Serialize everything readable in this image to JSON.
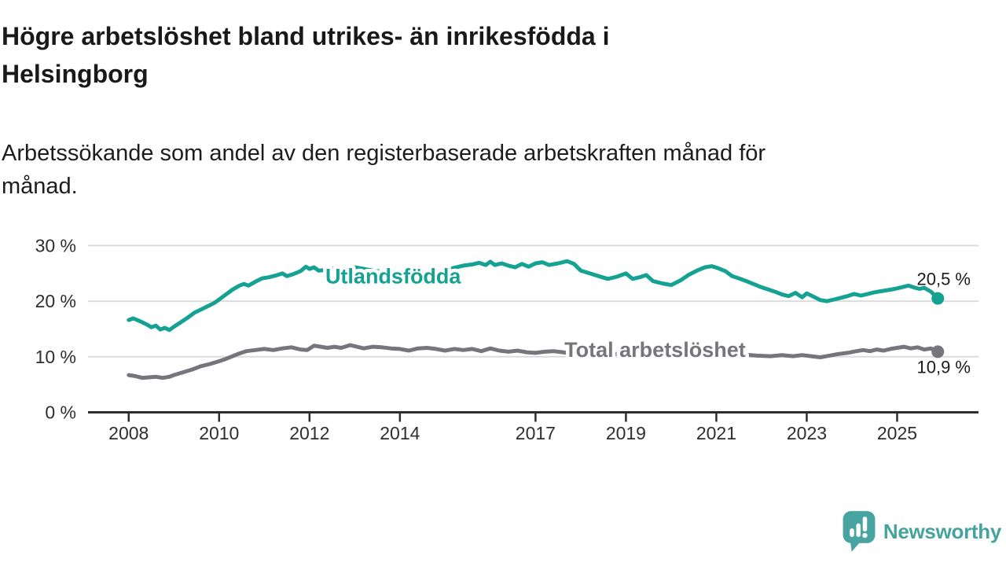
{
  "header": {
    "title_lines": [
      "Högre arbetslöshet bland utrikes- än inrikesfödda i",
      "Helsingborg"
    ],
    "subtitle_lines": [
      "Arbetssökande som andel av den registerbaserade arbetskraften månad för",
      "månad."
    ]
  },
  "chart_data": {
    "type": "line",
    "title": "Högre arbetslöshet bland utrikes- än inrikesfödda i Helsingborg",
    "subtitle": "Arbetssökande som andel av den registerbaserade arbetskraften månad för månad.",
    "x_unit": "year",
    "x_range": [
      2007.1,
      2026.8
    ],
    "y_range": [
      0,
      30
    ],
    "grid": "horizontal-light",
    "legend": "inline-labels",
    "y_ticks": [
      {
        "value": 0,
        "label": "0 %"
      },
      {
        "value": 10,
        "label": "10 %"
      },
      {
        "value": 20,
        "label": "20 %"
      },
      {
        "value": 30,
        "label": "30 %"
      }
    ],
    "x_ticks": [
      {
        "value": 2008,
        "label": "2008"
      },
      {
        "value": 2010,
        "label": "2010"
      },
      {
        "value": 2012,
        "label": "2012"
      },
      {
        "value": 2014,
        "label": "2014"
      },
      {
        "value": 2017,
        "label": "2017"
      },
      {
        "value": 2019,
        "label": "2019"
      },
      {
        "value": 2021,
        "label": "2021"
      },
      {
        "value": 2023,
        "label": "2023"
      },
      {
        "value": 2025,
        "label": "2025"
      }
    ],
    "series": [
      {
        "id": "utlandsfodda",
        "name": "Utlandsfödda",
        "color": "#15a292",
        "end_label": "20,5 %",
        "end_value": 20.5,
        "end_label_position": "above",
        "label": {
          "text": "Utlandsfödda",
          "x": 2012.35,
          "y": 23.2
        },
        "points": [
          [
            2008.0,
            16.6
          ],
          [
            2008.1,
            16.9
          ],
          [
            2008.25,
            16.4
          ],
          [
            2008.4,
            15.8
          ],
          [
            2008.5,
            15.3
          ],
          [
            2008.6,
            15.6
          ],
          [
            2008.7,
            14.9
          ],
          [
            2008.8,
            15.2
          ],
          [
            2008.9,
            14.8
          ],
          [
            2009.0,
            15.4
          ],
          [
            2009.15,
            16.2
          ],
          [
            2009.3,
            17.0
          ],
          [
            2009.45,
            17.9
          ],
          [
            2009.6,
            18.5
          ],
          [
            2009.75,
            19.1
          ],
          [
            2009.9,
            19.7
          ],
          [
            2010.0,
            20.3
          ],
          [
            2010.15,
            21.2
          ],
          [
            2010.3,
            22.1
          ],
          [
            2010.45,
            22.8
          ],
          [
            2010.55,
            23.1
          ],
          [
            2010.65,
            22.8
          ],
          [
            2010.8,
            23.5
          ],
          [
            2010.95,
            24.1
          ],
          [
            2011.1,
            24.3
          ],
          [
            2011.25,
            24.6
          ],
          [
            2011.4,
            25.0
          ],
          [
            2011.5,
            24.5
          ],
          [
            2011.65,
            24.9
          ],
          [
            2011.8,
            25.4
          ],
          [
            2011.92,
            26.2
          ],
          [
            2012.0,
            25.8
          ],
          [
            2012.1,
            26.1
          ],
          [
            2012.2,
            25.5
          ],
          [
            2012.35,
            25.6
          ],
          [
            2012.5,
            25.9
          ],
          [
            2012.65,
            25.6
          ],
          [
            2012.8,
            25.8
          ],
          [
            2013.0,
            26.1
          ],
          [
            2013.2,
            25.8
          ],
          [
            2013.4,
            25.5
          ],
          [
            2013.6,
            25.3
          ],
          [
            2013.8,
            25.1
          ],
          [
            2014.0,
            24.9
          ],
          [
            2014.2,
            24.6
          ],
          [
            2014.4,
            24.3
          ],
          [
            2014.6,
            24.6
          ],
          [
            2014.8,
            25.0
          ],
          [
            2015.0,
            25.5
          ],
          [
            2015.2,
            26.0
          ],
          [
            2015.4,
            26.4
          ],
          [
            2015.6,
            26.6
          ],
          [
            2015.75,
            26.9
          ],
          [
            2015.9,
            26.5
          ],
          [
            2016.0,
            27.1
          ],
          [
            2016.1,
            26.5
          ],
          [
            2016.25,
            26.8
          ],
          [
            2016.4,
            26.4
          ],
          [
            2016.55,
            26.1
          ],
          [
            2016.7,
            26.7
          ],
          [
            2016.85,
            26.2
          ],
          [
            2017.0,
            26.8
          ],
          [
            2017.15,
            27.0
          ],
          [
            2017.3,
            26.5
          ],
          [
            2017.5,
            26.8
          ],
          [
            2017.7,
            27.2
          ],
          [
            2017.85,
            26.7
          ],
          [
            2018.0,
            25.5
          ],
          [
            2018.2,
            25.0
          ],
          [
            2018.4,
            24.5
          ],
          [
            2018.6,
            24.0
          ],
          [
            2018.8,
            24.4
          ],
          [
            2019.0,
            25.0
          ],
          [
            2019.15,
            24.0
          ],
          [
            2019.3,
            24.3
          ],
          [
            2019.45,
            24.7
          ],
          [
            2019.6,
            23.6
          ],
          [
            2019.8,
            23.2
          ],
          [
            2020.0,
            22.9
          ],
          [
            2020.2,
            23.7
          ],
          [
            2020.4,
            24.8
          ],
          [
            2020.6,
            25.6
          ],
          [
            2020.75,
            26.1
          ],
          [
            2020.9,
            26.3
          ],
          [
            2021.05,
            25.9
          ],
          [
            2021.2,
            25.4
          ],
          [
            2021.35,
            24.5
          ],
          [
            2021.5,
            24.1
          ],
          [
            2021.7,
            23.5
          ],
          [
            2021.85,
            23.0
          ],
          [
            2022.0,
            22.5
          ],
          [
            2022.15,
            22.1
          ],
          [
            2022.3,
            21.7
          ],
          [
            2022.45,
            21.2
          ],
          [
            2022.6,
            20.9
          ],
          [
            2022.75,
            21.5
          ],
          [
            2022.9,
            20.7
          ],
          [
            2023.0,
            21.4
          ],
          [
            2023.15,
            20.8
          ],
          [
            2023.3,
            20.2
          ],
          [
            2023.45,
            20.0
          ],
          [
            2023.6,
            20.3
          ],
          [
            2023.75,
            20.6
          ],
          [
            2023.9,
            20.9
          ],
          [
            2024.05,
            21.3
          ],
          [
            2024.2,
            21.0
          ],
          [
            2024.35,
            21.3
          ],
          [
            2024.5,
            21.6
          ],
          [
            2024.65,
            21.8
          ],
          [
            2024.8,
            22.0
          ],
          [
            2024.95,
            22.2
          ],
          [
            2025.1,
            22.5
          ],
          [
            2025.25,
            22.8
          ],
          [
            2025.4,
            22.4
          ],
          [
            2025.5,
            22.2
          ],
          [
            2025.6,
            22.4
          ],
          [
            2025.75,
            21.7
          ],
          [
            2025.9,
            20.5
          ]
        ]
      },
      {
        "id": "total-arbetsloshet",
        "name": "Total arbetslöshet",
        "color": "#76757c",
        "end_label": "10,9 %",
        "end_value": 10.9,
        "end_label_position": "below",
        "label": {
          "text": "Total arbetslöshet",
          "x": 2017.64,
          "y": 10.0
        },
        "points": [
          [
            2008.0,
            6.7
          ],
          [
            2008.15,
            6.5
          ],
          [
            2008.3,
            6.2
          ],
          [
            2008.45,
            6.3
          ],
          [
            2008.6,
            6.4
          ],
          [
            2008.75,
            6.2
          ],
          [
            2008.9,
            6.4
          ],
          [
            2009.0,
            6.7
          ],
          [
            2009.2,
            7.2
          ],
          [
            2009.4,
            7.7
          ],
          [
            2009.6,
            8.3
          ],
          [
            2009.8,
            8.7
          ],
          [
            2010.0,
            9.2
          ],
          [
            2010.15,
            9.6
          ],
          [
            2010.3,
            10.1
          ],
          [
            2010.45,
            10.6
          ],
          [
            2010.6,
            11.0
          ],
          [
            2010.8,
            11.2
          ],
          [
            2011.0,
            11.4
          ],
          [
            2011.2,
            11.2
          ],
          [
            2011.4,
            11.5
          ],
          [
            2011.6,
            11.7
          ],
          [
            2011.8,
            11.3
          ],
          [
            2011.95,
            11.2
          ],
          [
            2012.1,
            12.0
          ],
          [
            2012.25,
            11.8
          ],
          [
            2012.4,
            11.6
          ],
          [
            2012.55,
            11.8
          ],
          [
            2012.7,
            11.6
          ],
          [
            2012.9,
            12.1
          ],
          [
            2013.05,
            11.8
          ],
          [
            2013.2,
            11.5
          ],
          [
            2013.4,
            11.8
          ],
          [
            2013.6,
            11.7
          ],
          [
            2013.8,
            11.5
          ],
          [
            2014.0,
            11.4
          ],
          [
            2014.2,
            11.1
          ],
          [
            2014.4,
            11.5
          ],
          [
            2014.6,
            11.6
          ],
          [
            2014.8,
            11.4
          ],
          [
            2015.0,
            11.1
          ],
          [
            2015.2,
            11.4
          ],
          [
            2015.4,
            11.2
          ],
          [
            2015.6,
            11.4
          ],
          [
            2015.8,
            11.0
          ],
          [
            2016.0,
            11.5
          ],
          [
            2016.2,
            11.1
          ],
          [
            2016.4,
            10.9
          ],
          [
            2016.6,
            11.1
          ],
          [
            2016.8,
            10.8
          ],
          [
            2017.0,
            10.7
          ],
          [
            2017.2,
            10.9
          ],
          [
            2017.4,
            11.0
          ],
          [
            2017.6,
            10.8
          ],
          [
            2017.8,
            10.6
          ],
          [
            2018.0,
            10.5
          ],
          [
            2018.3,
            10.7
          ],
          [
            2018.6,
            10.4
          ],
          [
            2018.9,
            10.6
          ],
          [
            2019.2,
            10.3
          ],
          [
            2019.5,
            10.5
          ],
          [
            2019.8,
            10.2
          ],
          [
            2020.1,
            10.6
          ],
          [
            2020.4,
            11.0
          ],
          [
            2020.7,
            10.8
          ],
          [
            2021.0,
            10.5
          ],
          [
            2021.3,
            10.3
          ],
          [
            2021.6,
            10.4
          ],
          [
            2021.9,
            10.2
          ],
          [
            2022.2,
            10.1
          ],
          [
            2022.45,
            10.3
          ],
          [
            2022.7,
            10.1
          ],
          [
            2022.9,
            10.3
          ],
          [
            2023.1,
            10.1
          ],
          [
            2023.3,
            9.9
          ],
          [
            2023.5,
            10.2
          ],
          [
            2023.7,
            10.5
          ],
          [
            2023.9,
            10.7
          ],
          [
            2024.1,
            11.0
          ],
          [
            2024.25,
            11.2
          ],
          [
            2024.4,
            11.0
          ],
          [
            2024.55,
            11.3
          ],
          [
            2024.7,
            11.1
          ],
          [
            2024.85,
            11.4
          ],
          [
            2025.0,
            11.6
          ],
          [
            2025.15,
            11.8
          ],
          [
            2025.3,
            11.5
          ],
          [
            2025.45,
            11.7
          ],
          [
            2025.6,
            11.3
          ],
          [
            2025.75,
            11.5
          ],
          [
            2025.9,
            10.9
          ]
        ]
      }
    ]
  },
  "branding": {
    "name": "Newsworthy",
    "color": "#45a39e",
    "icon": "newsworthy-logo-icon"
  }
}
